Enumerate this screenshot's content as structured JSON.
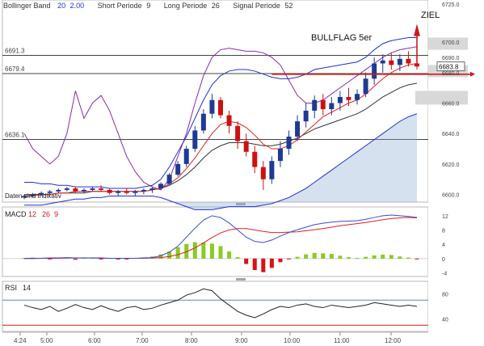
{
  "header": {
    "bb_label": "Bollinger Band",
    "bb_period": "20",
    "bb_dev": "2.00",
    "short_label": "Short Periode",
    "short_val": "9",
    "long_label": "Long Periode",
    "long_val": "26",
    "signal_label": "Signal Periode",
    "signal_val": "52"
  },
  "annotations": {
    "pattern": "BULLFLAG 5er",
    "target": "ZIEL",
    "indicator_note": "Daten sind Indikativ"
  },
  "colors": {
    "candle_up": "#1f3a93",
    "candle_down": "#cc1111",
    "bb_upper": "#2030d0",
    "bb_mid": "#333333",
    "ma_short": "#dd2222",
    "purple": "#8a2ab0",
    "macd": "#3a4ad8",
    "signal": "#dd2222",
    "hist_pos": "#88cc22",
    "hist_neg": "#dd1111",
    "hline": "#444444",
    "ziel_line": "#d01818",
    "rsi": "#222222",
    "rsi_level": "#5a8ab0"
  },
  "chart_data": [
    {
      "type": "candlestick",
      "panel": "price",
      "ylim": [
        6595,
        6725
      ],
      "y_ticks": [
        "6725.0",
        "6700.0",
        "6690.0",
        "6680.0",
        "6660.0",
        "6640.0",
        "6620.0",
        "6600.0"
      ],
      "x_ticks": [
        "4:24",
        "5:00",
        "6:00",
        "7:00",
        "8:00",
        "9:00",
        "10:00",
        "11:00",
        "12:00"
      ],
      "horizontal_levels": [
        {
          "label": "6691.3",
          "value": 6691.3
        },
        {
          "label": "6679.4",
          "value": 6679.4
        },
        {
          "label": "6636.1",
          "value": 6636.1
        }
      ],
      "last_price": "6683.8",
      "ziel_level": 6680.0,
      "candles": [
        [
          6598,
          6600,
          6597,
          6599
        ],
        [
          6599,
          6601,
          6598,
          6600
        ],
        [
          6600,
          6602,
          6599,
          6601
        ],
        [
          6601,
          6603,
          6600,
          6602
        ],
        [
          6602,
          6604,
          6601,
          6603
        ],
        [
          6603,
          6605,
          6602,
          6604
        ],
        [
          6604,
          6605,
          6601,
          6602
        ],
        [
          6602,
          6604,
          6601,
          6603
        ],
        [
          6603,
          6605,
          6602,
          6604
        ],
        [
          6604,
          6606,
          6602,
          6603
        ],
        [
          6603,
          6604,
          6600,
          6601
        ],
        [
          6601,
          6603,
          6599,
          6602
        ],
        [
          6602,
          6604,
          6600,
          6601
        ],
        [
          6601,
          6603,
          6599,
          6602
        ],
        [
          6602,
          6604,
          6600,
          6603
        ],
        [
          6603,
          6605,
          6601,
          6604
        ],
        [
          6604,
          6608,
          6603,
          6607
        ],
        [
          6607,
          6614,
          6606,
          6613
        ],
        [
          6613,
          6622,
          6612,
          6620
        ],
        [
          6620,
          6632,
          6618,
          6630
        ],
        [
          6630,
          6645,
          6628,
          6642
        ],
        [
          6642,
          6656,
          6640,
          6653
        ],
        [
          6653,
          6666,
          6650,
          6662
        ],
        [
          6662,
          6664,
          6650,
          6652
        ],
        [
          6652,
          6655,
          6640,
          6645
        ],
        [
          6645,
          6648,
          6630,
          6635
        ],
        [
          6635,
          6640,
          6625,
          6628
        ],
        [
          6628,
          6632,
          6614,
          6618
        ],
        [
          6618,
          6622,
          6603,
          6610
        ],
        [
          6610,
          6625,
          6607,
          6622
        ],
        [
          6622,
          6635,
          6618,
          6630
        ],
        [
          6630,
          6642,
          6626,
          6638
        ],
        [
          6638,
          6652,
          6635,
          6648
        ],
        [
          6648,
          6660,
          6644,
          6655
        ],
        [
          6655,
          6665,
          6650,
          6662
        ],
        [
          6662,
          6666,
          6652,
          6656
        ],
        [
          6656,
          6664,
          6652,
          6660
        ],
        [
          6660,
          6668,
          6655,
          6664
        ],
        [
          6664,
          6670,
          6658,
          6662
        ],
        [
          6662,
          6669,
          6659,
          6666
        ],
        [
          6666,
          6680,
          6664,
          6676
        ],
        [
          6676,
          6690,
          6672,
          6686
        ],
        [
          6686,
          6692,
          6680,
          6688
        ],
        [
          6688,
          6693,
          6682,
          6685
        ],
        [
          6685,
          6692,
          6681,
          6689
        ],
        [
          6689,
          6694,
          6684,
          6686
        ],
        [
          6686,
          6691,
          6682,
          6684
        ]
      ],
      "bb_upper": [
        6608,
        6608,
        6607,
        6607,
        6606,
        6606,
        6605,
        6605,
        6605,
        6605,
        6604,
        6604,
        6604,
        6604,
        6605,
        6606,
        6610,
        6618,
        6628,
        6638,
        6650,
        6662,
        6672,
        6678,
        6681,
        6682,
        6682,
        6681,
        6679,
        6677,
        6676,
        6676,
        6677,
        6679,
        6682,
        6683,
        6684,
        6685,
        6686,
        6687,
        6690,
        6695,
        6699,
        6701,
        6702,
        6703,
        6703
      ],
      "bb_mid": [
        6600,
        6600,
        6600,
        6600,
        6601,
        6601,
        6601,
        6601,
        6602,
        6602,
        6602,
        6602,
        6602,
        6602,
        6602,
        6603,
        6604,
        6606,
        6609,
        6613,
        6618,
        6624,
        6629,
        6632,
        6634,
        6634,
        6634,
        6633,
        6632,
        6632,
        6633,
        6635,
        6637,
        6640,
        6643,
        6645,
        6647,
        6649,
        6651,
        6653,
        6656,
        6660,
        6664,
        6667,
        6670,
        6672,
        6673
      ],
      "bb_lower": [
        6593,
        6593,
        6593,
        6594,
        6595,
        6596,
        6597,
        6597,
        6598,
        6598,
        6599,
        6599,
        6599,
        6599,
        6599,
        6599,
        6598,
        6596,
        6594,
        6592,
        6590,
        6590,
        6590,
        6591,
        6592,
        6592,
        6592,
        6592,
        6593,
        6594,
        6596,
        6598,
        6601,
        6604,
        6608,
        6612,
        6616,
        6620,
        6624,
        6628,
        6632,
        6636,
        6640,
        6644,
        6648,
        6651,
        6653
      ],
      "ma_short": [
        6599,
        6599,
        6600,
        6600,
        6601,
        6601,
        6602,
        6602,
        6602,
        6602,
        6602,
        6602,
        6602,
        6602,
        6602,
        6603,
        6604,
        6607,
        6611,
        6617,
        6624,
        6632,
        6640,
        6646,
        6648,
        6647,
        6644,
        6639,
        6633,
        6630,
        6630,
        6632,
        6636,
        6641,
        6646,
        6651,
        6654,
        6657,
        6660,
        6662,
        6666,
        6671,
        6676,
        6680,
        6683,
        6685,
        6686
      ],
      "purple": [
        6640,
        6630,
        6625,
        6620,
        6625,
        6640,
        6668,
        6650,
        6660,
        6665,
        6655,
        6640,
        6625,
        6615,
        6608,
        6605,
        6603,
        6610,
        6625,
        6640,
        6660,
        6678,
        6690,
        6695,
        6696,
        6695,
        6694,
        6694,
        6693,
        6690,
        6685,
        6675,
        6665,
        6660,
        6660,
        6662,
        6666,
        6670,
        6674,
        6678,
        6682,
        6686,
        6690,
        6693,
        6695,
        6696,
        6697
      ]
    },
    {
      "type": "line",
      "panel": "macd",
      "title": "MACD",
      "params": [
        "12",
        "26",
        "9"
      ],
      "ylim": [
        -5,
        14
      ],
      "y_ticks": [
        "12",
        "8",
        "4",
        "0",
        "-4"
      ],
      "macd": [
        0.1,
        0.1,
        0.1,
        0.2,
        0.2,
        0.3,
        0.2,
        0.2,
        0.2,
        0.1,
        0.1,
        0.1,
        0.1,
        0.1,
        0.2,
        0.3,
        0.8,
        1.8,
        3.5,
        6.0,
        8.5,
        10.8,
        12.0,
        11.5,
        10.0,
        8.0,
        6.0,
        4.8,
        4.5,
        5.2,
        6.3,
        7.3,
        8.1,
        8.8,
        9.5,
        9.9,
        10.2,
        10.4,
        10.5,
        10.6,
        11.0,
        11.5,
        12.0,
        12.2,
        12.0,
        11.8,
        11.5
      ],
      "signal": [
        0.0,
        0.0,
        0.1,
        0.1,
        0.1,
        0.2,
        0.2,
        0.2,
        0.2,
        0.2,
        0.1,
        0.1,
        0.1,
        0.1,
        0.1,
        0.2,
        0.3,
        0.6,
        1.1,
        1.9,
        3.0,
        4.4,
        5.9,
        7.2,
        8.0,
        8.4,
        8.4,
        8.0,
        7.6,
        7.3,
        7.3,
        7.4,
        7.5,
        7.8,
        8.1,
        8.4,
        8.8,
        9.2,
        9.5,
        9.8,
        10.1,
        10.5,
        10.9,
        11.2,
        11.4,
        11.5,
        11.4
      ],
      "histogram": [
        0.2,
        0.3,
        0.2,
        -0.2,
        0.3,
        0.2,
        -0.3,
        0.2,
        0.2,
        -0.2,
        0.2,
        -0.2,
        -0.2,
        0.2,
        0.3,
        0.6,
        1.2,
        2.0,
        3.2,
        4.1,
        4.6,
        4.5,
        4.2,
        3.5,
        2.0,
        0.4,
        -1.5,
        -3.2,
        -3.8,
        -2.6,
        -1.0,
        -0.2,
        0.5,
        1.2,
        1.6,
        1.5,
        1.3,
        0.8,
        0.4,
        0.2,
        0.5,
        0.9,
        1.1,
        1.0,
        0.6,
        0.3,
        -0.2
      ]
    },
    {
      "type": "line",
      "panel": "rsi",
      "title": "RSI",
      "params": [
        "14"
      ],
      "ylim": [
        20,
        100
      ],
      "y_ticks": [
        "80",
        "40"
      ],
      "levels": [
        70,
        30
      ],
      "values": [
        62,
        58,
        55,
        60,
        52,
        57,
        63,
        58,
        55,
        61,
        56,
        52,
        58,
        60,
        55,
        57,
        62,
        66,
        70,
        78,
        82,
        88,
        85,
        72,
        62,
        52,
        46,
        42,
        48,
        55,
        60,
        58,
        62,
        64,
        60,
        58,
        62,
        60,
        58,
        60,
        62,
        66,
        64,
        62,
        60,
        62,
        60
      ]
    }
  ]
}
